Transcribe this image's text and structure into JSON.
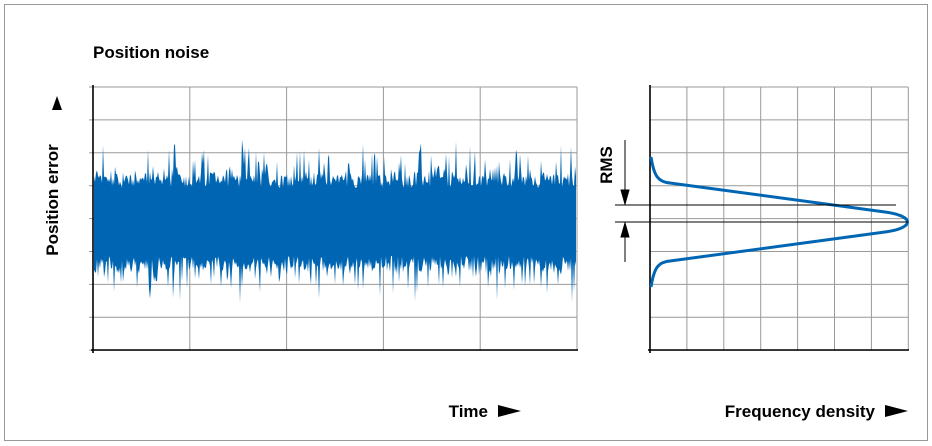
{
  "header": {
    "title": "Position noise"
  },
  "labels": {
    "y_axis": "Position error",
    "x_axis_left": "Time",
    "x_axis_right": "Frequency density",
    "rms": "RMS"
  }
}
